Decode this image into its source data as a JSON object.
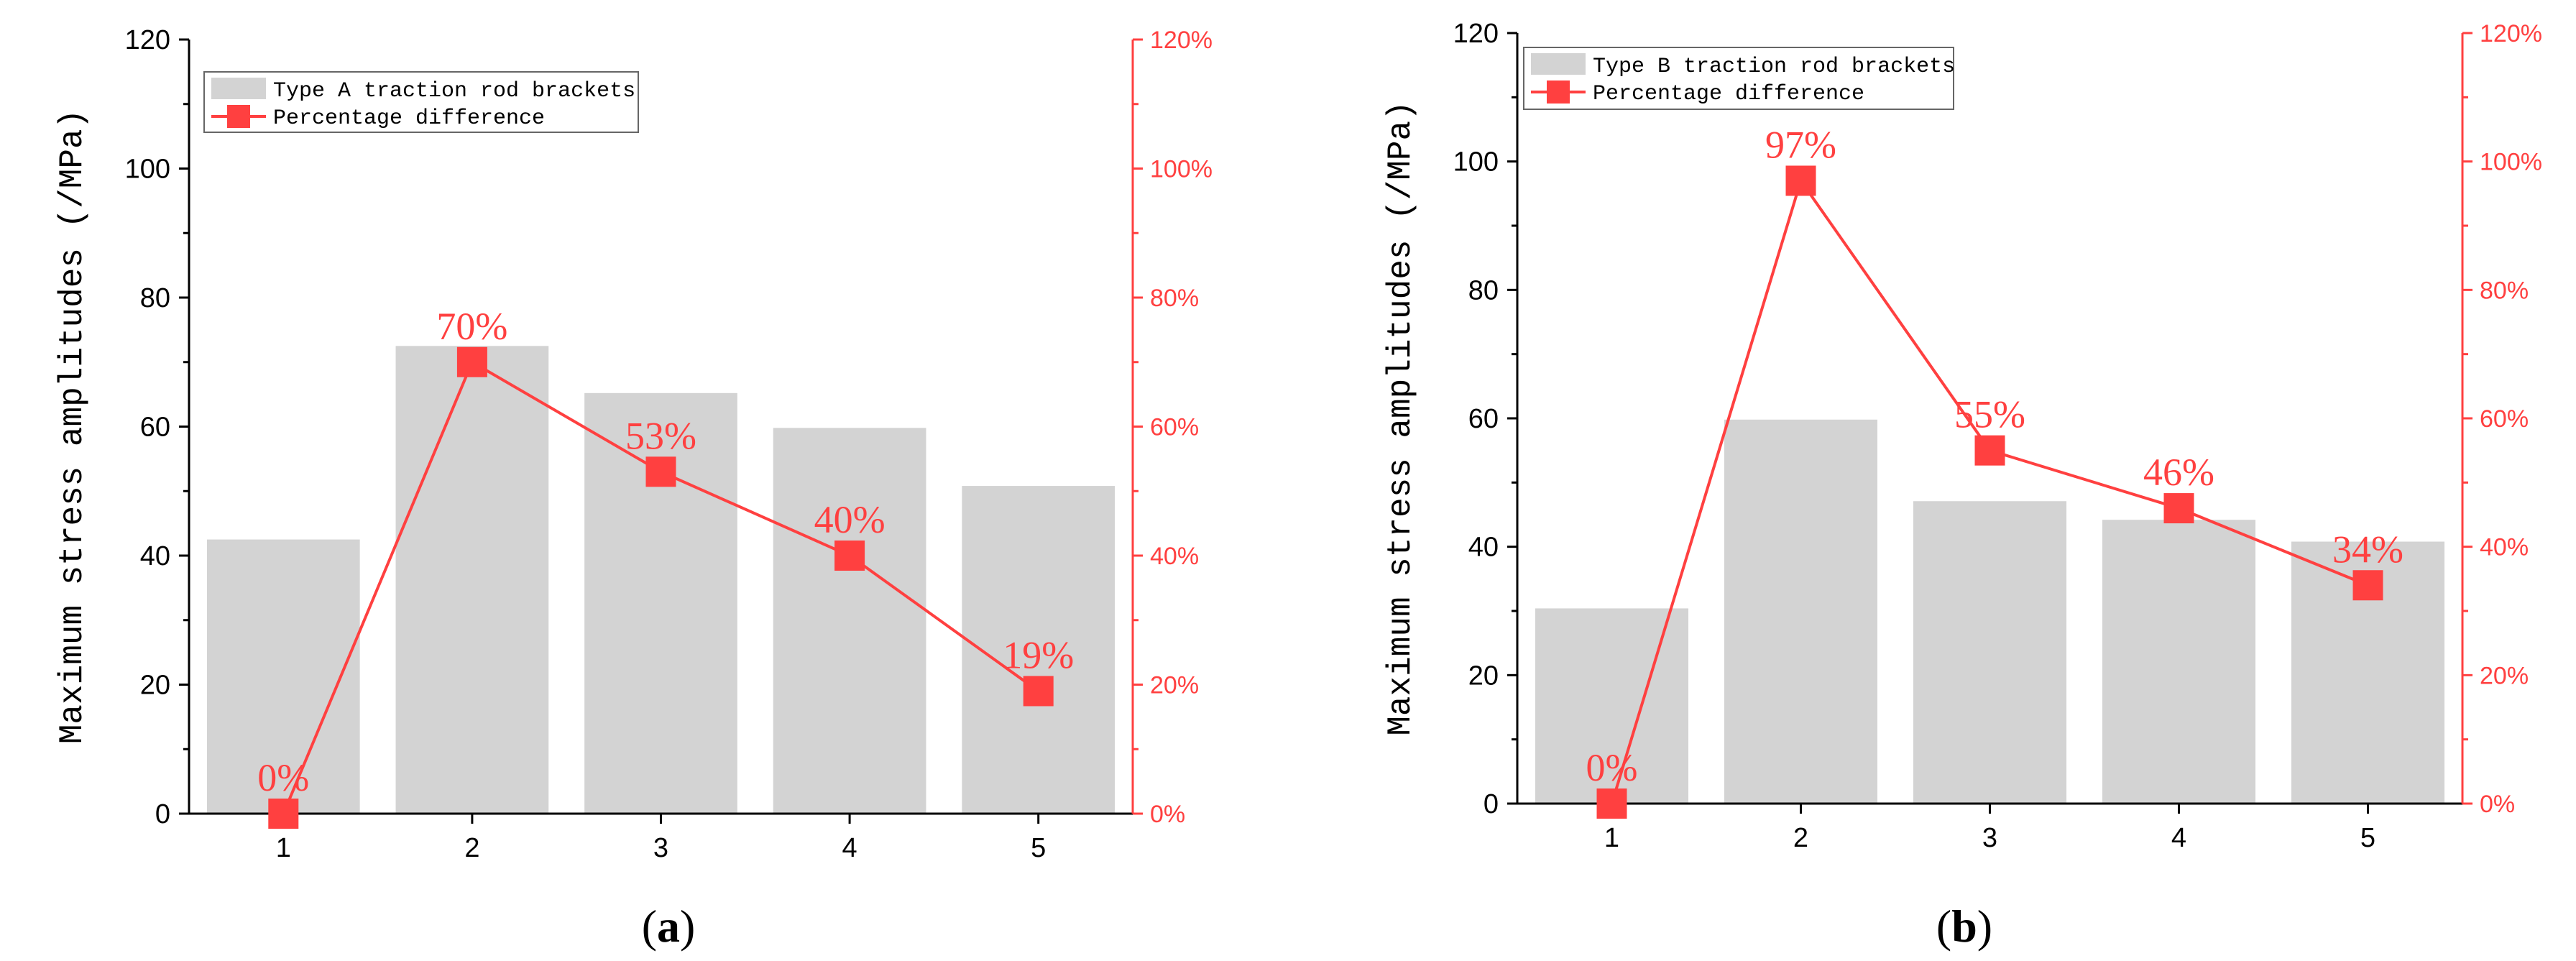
{
  "colors": {
    "bar": "#d3d3d3",
    "line": "#ff4040",
    "axis_left": "#000000",
    "axis_right": "#ff4040",
    "text": "#000000"
  },
  "chart_data": [
    {
      "type": "bar",
      "panel_label": "(a)",
      "categories": [
        "1",
        "2",
        "3",
        "4",
        "5"
      ],
      "ylabel": "Maximum stress amplitudes (/MPa)",
      "ylim": [
        0,
        120
      ],
      "yticks": [
        0,
        20,
        40,
        60,
        80,
        100,
        120
      ],
      "y2lim": [
        0,
        120
      ],
      "y2ticks": [
        "0%",
        "20%",
        "40%",
        "60%",
        "80%",
        "100%",
        "120%"
      ],
      "legend_placement": "top-left",
      "grid": false,
      "series": [
        {
          "name": "Type A traction rod brackets",
          "kind": "bar",
          "axis": "left",
          "values": [
            42.5,
            72.5,
            65.2,
            59.8,
            50.8
          ]
        },
        {
          "name": "Percentage difference",
          "kind": "line",
          "axis": "right",
          "values": [
            0,
            70,
            53,
            40,
            19
          ],
          "labels": [
            "0%",
            "70%",
            "53%",
            "40%",
            "19%"
          ]
        }
      ]
    },
    {
      "type": "bar",
      "panel_label": "(b)",
      "categories": [
        "1",
        "2",
        "3",
        "4",
        "5"
      ],
      "ylabel": "Maximum stress amplitudes (/MPa)",
      "ylim": [
        0,
        120
      ],
      "yticks": [
        0,
        20,
        40,
        60,
        80,
        100,
        120
      ],
      "y2lim": [
        0,
        120
      ],
      "y2ticks": [
        "0%",
        "20%",
        "40%",
        "60%",
        "80%",
        "100%",
        "120%"
      ],
      "legend_placement": "top-left",
      "grid": false,
      "series": [
        {
          "name": "Type B traction rod brackets",
          "kind": "bar",
          "axis": "left",
          "values": [
            30.4,
            59.8,
            47.1,
            44.2,
            40.8
          ]
        },
        {
          "name": "Percentage difference",
          "kind": "line",
          "axis": "right",
          "values": [
            0,
            97,
            55,
            46,
            34
          ],
          "labels": [
            "0%",
            "97%",
            "55%",
            "46%",
            "34%"
          ]
        }
      ]
    }
  ]
}
